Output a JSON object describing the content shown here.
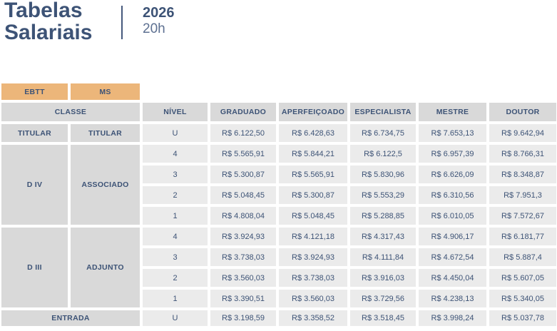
{
  "header": {
    "title_line1": "Tabelas",
    "title_line2": "Salariais",
    "year": "2026",
    "hours": "20h"
  },
  "filters": {
    "ebtt": "EBTT",
    "ms": "MS"
  },
  "table": {
    "headers": {
      "classe": "CLASSE",
      "nivel": "NÍVEL",
      "graduado": "GRADUADO",
      "aperfeicoado": "APERFEIÇOADO",
      "especialista": "ESPECIALISTA",
      "mestre": "MESTRE",
      "doutor": "DOUTOR"
    },
    "titular": {
      "ebtt": "TITULAR",
      "ms": "TITULAR",
      "nivel": "U",
      "values": [
        "R$ 6.122,50",
        "R$ 6.428,63",
        "R$ 6.734,75",
        "R$ 7.653,13",
        "R$ 9.642,94"
      ]
    },
    "groups": [
      {
        "ebtt": "D IV",
        "ms": "ASSOCIADO",
        "rows": [
          {
            "nivel": "4",
            "values": [
              "R$ 5.565,91",
              "R$ 5.844,21",
              "R$ 6.122,5",
              "R$ 6.957,39",
              "R$ 8.766,31"
            ]
          },
          {
            "nivel": "3",
            "values": [
              "R$ 5.300,87",
              "R$ 5.565,91",
              "R$ 5.830,96",
              "R$ 6.626,09",
              "R$ 8.348,87"
            ]
          },
          {
            "nivel": "2",
            "values": [
              "R$ 5.048,45",
              "R$ 5.300,87",
              "R$ 5.553,29",
              "R$ 6.310,56",
              "R$ 7.951,3"
            ]
          },
          {
            "nivel": "1",
            "values": [
              "R$ 4.808,04",
              "R$ 5.048,45",
              "R$ 5.288,85",
              "R$ 6.010,05",
              "R$ 7.572,67"
            ]
          }
        ]
      },
      {
        "ebtt": "D III",
        "ms": "ADJUNTO",
        "rows": [
          {
            "nivel": "4",
            "values": [
              "R$ 3.924,93",
              "R$ 4.121,18",
              "R$ 4.317,43",
              "R$ 4.906,17",
              "R$ 6.181,77"
            ]
          },
          {
            "nivel": "3",
            "values": [
              "R$ 3.738,03",
              "R$ 3.924,93",
              "R$ 4.111,84",
              "R$ 4.672,54",
              "R$ 5.887,4"
            ]
          },
          {
            "nivel": "2",
            "values": [
              "R$ 3.560,03",
              "R$ 3.738,03",
              "R$ 3.916,03",
              "R$ 4.450,04",
              "R$ 5.607,05"
            ]
          },
          {
            "nivel": "1",
            "values": [
              "R$ 3.390,51",
              "R$ 3.560,03",
              "R$ 3.729,56",
              "R$ 4.238,13",
              "R$ 5.340,05"
            ]
          }
        ]
      }
    ],
    "entrada": {
      "label": "ENTRADA",
      "nivel": "U",
      "values": [
        "R$ 3.198,59",
        "R$ 3.358,52",
        "R$ 3.518,45",
        "R$ 3.998,24",
        "R$ 5.037,78"
      ]
    }
  },
  "colors": {
    "navy_text": "#3d5376",
    "navy_light": "#5d7091",
    "orange_button": "#ecb67a",
    "gray_dark_cell": "#d9d9d9",
    "gray_light_cell": "#ebebeb",
    "background": "#ffffff"
  },
  "chart_data": {
    "type": "table",
    "title": "Tabelas Salariais",
    "subtitle": "2026 — 20h",
    "columns": [
      "CLASSE (EBTT)",
      "CLASSE (MS)",
      "NÍVEL",
      "GRADUADO",
      "APERFEIÇOADO",
      "ESPECIALISTA",
      "MESTRE",
      "DOUTOR"
    ],
    "rows": [
      [
        "TITULAR",
        "TITULAR",
        "U",
        "R$ 6.122,50",
        "R$ 6.428,63",
        "R$ 6.734,75",
        "R$ 7.653,13",
        "R$ 9.642,94"
      ],
      [
        "D IV",
        "ASSOCIADO",
        "4",
        "R$ 5.565,91",
        "R$ 5.844,21",
        "R$ 6.122,5",
        "R$ 6.957,39",
        "R$ 8.766,31"
      ],
      [
        "D IV",
        "ASSOCIADO",
        "3",
        "R$ 5.300,87",
        "R$ 5.565,91",
        "R$ 5.830,96",
        "R$ 6.626,09",
        "R$ 8.348,87"
      ],
      [
        "D IV",
        "ASSOCIADO",
        "2",
        "R$ 5.048,45",
        "R$ 5.300,87",
        "R$ 5.553,29",
        "R$ 6.310,56",
        "R$ 7.951,3"
      ],
      [
        "D IV",
        "ASSOCIADO",
        "1",
        "R$ 4.808,04",
        "R$ 5.048,45",
        "R$ 5.288,85",
        "R$ 6.010,05",
        "R$ 7.572,67"
      ],
      [
        "D III",
        "ADJUNTO",
        "4",
        "R$ 3.924,93",
        "R$ 4.121,18",
        "R$ 4.317,43",
        "R$ 4.906,17",
        "R$ 6.181,77"
      ],
      [
        "D III",
        "ADJUNTO",
        "3",
        "R$ 3.738,03",
        "R$ 3.924,93",
        "R$ 4.111,84",
        "R$ 4.672,54",
        "R$ 5.887,4"
      ],
      [
        "D III",
        "ADJUNTO",
        "2",
        "R$ 3.560,03",
        "R$ 3.738,03",
        "R$ 3.916,03",
        "R$ 4.450,04",
        "R$ 5.607,05"
      ],
      [
        "D III",
        "ADJUNTO",
        "1",
        "R$ 3.390,51",
        "R$ 3.560,03",
        "R$ 3.729,56",
        "R$ 4.238,13",
        "R$ 5.340,05"
      ],
      [
        "ENTRADA",
        "ENTRADA",
        "U",
        "R$ 3.198,59",
        "R$ 3.358,52",
        "R$ 3.518,45",
        "R$ 3.998,24",
        "R$ 5.037,78"
      ]
    ]
  }
}
